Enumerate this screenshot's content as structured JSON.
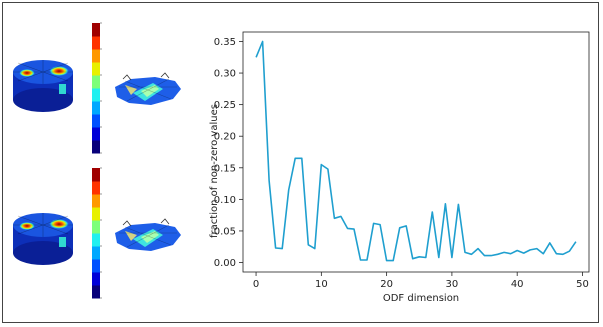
{
  "colorbar": {
    "colors": [
      "#08007a",
      "#0000d8",
      "#0050ff",
      "#00a8ff",
      "#20f0f0",
      "#7dff7a",
      "#e8f000",
      "#ff9900",
      "#ff3300",
      "#a00000"
    ]
  },
  "chart_data": {
    "type": "line",
    "xlabel": "ODF dimension",
    "ylabel": "fraction of non-zero values",
    "xlim": [
      -2,
      51
    ],
    "ylim": [
      -0.015,
      0.365
    ],
    "xticks": [
      0,
      10,
      20,
      30,
      40,
      50
    ],
    "yticks": [
      0.0,
      0.05,
      0.1,
      0.15,
      0.2,
      0.25,
      0.3,
      0.35
    ],
    "ytick_labels": [
      "0.00",
      "0.05",
      "0.10",
      "0.15",
      "0.20",
      "0.25",
      "0.30",
      "0.35"
    ],
    "grid": false,
    "line_color": "#1f9fcf",
    "series": [
      {
        "x": [
          0,
          1,
          2,
          3,
          4,
          5,
          6,
          7,
          8,
          9,
          10,
          11,
          12,
          13,
          14,
          15,
          16,
          17,
          18,
          19,
          20,
          21,
          22,
          23,
          24,
          25,
          26,
          27,
          28,
          29,
          30,
          31,
          32,
          33,
          34,
          35,
          36,
          37,
          38,
          39,
          40,
          41,
          42,
          43,
          44,
          45,
          46,
          47,
          48,
          49
        ],
        "values": [
          0.325,
          0.35,
          0.13,
          0.023,
          0.022,
          0.115,
          0.165,
          0.165,
          0.028,
          0.022,
          0.155,
          0.148,
          0.07,
          0.073,
          0.054,
          0.053,
          0.004,
          0.004,
          0.062,
          0.06,
          0.003,
          0.003,
          0.055,
          0.058,
          0.006,
          0.009,
          0.008,
          0.08,
          0.008,
          0.093,
          0.008,
          0.092,
          0.016,
          0.013,
          0.022,
          0.011,
          0.011,
          0.013,
          0.016,
          0.014,
          0.019,
          0.015,
          0.02,
          0.022,
          0.014,
          0.031,
          0.014,
          0.013,
          0.018,
          0.033
        ]
      }
    ]
  }
}
